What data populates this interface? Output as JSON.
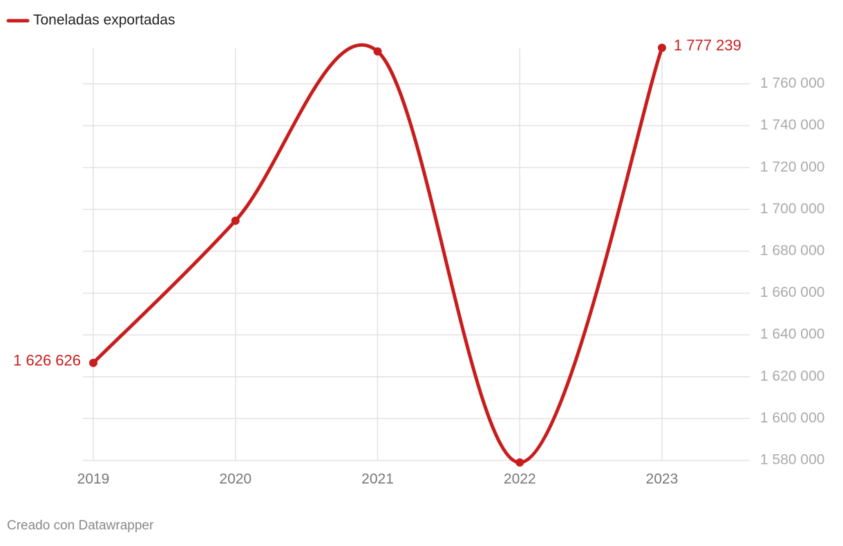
{
  "chart_data": {
    "type": "line",
    "categories": [
      "2019",
      "2020",
      "2021",
      "2022",
      "2023"
    ],
    "series": [
      {
        "name": "Toneladas exportadas",
        "color": "#c71e1d",
        "values": [
          1626626,
          1694600,
          1775500,
          1579000,
          1777239
        ],
        "value_labels": [
          "1 626 626",
          null,
          null,
          null,
          "1 777 239"
        ]
      }
    ],
    "ylim": [
      1580000,
      1777000
    ],
    "yticks": [
      {
        "value": 1580000,
        "label": "1 580 000"
      },
      {
        "value": 1600000,
        "label": "1 600 000"
      },
      {
        "value": 1620000,
        "label": "1 620 000"
      },
      {
        "value": 1640000,
        "label": "1 640 000"
      },
      {
        "value": 1660000,
        "label": "1 660 000"
      },
      {
        "value": 1680000,
        "label": "1 680 000"
      },
      {
        "value": 1700000,
        "label": "1 700 000"
      },
      {
        "value": 1720000,
        "label": "1 720 000"
      },
      {
        "value": 1740000,
        "label": "1 740 000"
      },
      {
        "value": 1760000,
        "label": "1 760 000"
      }
    ],
    "grid": true,
    "footer": "Creado con Datawrapper"
  }
}
